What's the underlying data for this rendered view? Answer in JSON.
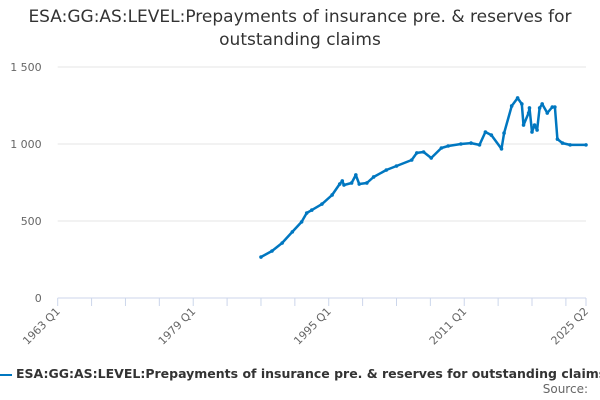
{
  "chart_data": {
    "type": "line",
    "title": "ESA:GG:AS:LEVEL:Prepayments of insurance pre. & reserves for outstanding claims",
    "xlabel": "",
    "ylabel": "",
    "x_tick_labels": [
      "1963 Q1",
      "1979 Q1",
      "1995 Q1",
      "2011 Q1",
      "2025 Q2"
    ],
    "x_tick_values": [
      1963.0,
      1979.0,
      1995.0,
      2011.0,
      2025.375
    ],
    "xlim": [
      1963.0,
      2025.375
    ],
    "y_tick_labels": [
      "0",
      "500",
      "1 000",
      "1 500"
    ],
    "y_tick_values": [
      0,
      500,
      1000,
      1500
    ],
    "ylim": [
      0,
      1500
    ],
    "grid": "horizontal",
    "legend_placement": "bottom",
    "series": [
      {
        "name": "ESA:GG:AS:LEVEL:Prepayments of insurance pre. & reserves for outstanding claims",
        "color": "#0077c0",
        "x": [
          1987.0,
          1988.3,
          1989.5,
          1990.7,
          1991.8,
          1992.4,
          1993.0,
          1994.2,
          1995.4,
          1996.3,
          1996.6,
          1996.8,
          1997.7,
          1998.2,
          1998.6,
          1999.5,
          2000.3,
          2001.8,
          2003.0,
          2004.8,
          2005.4,
          2006.2,
          2007.1,
          2008.3,
          2009.1,
          2010.6,
          2011.8,
          2012.8,
          2013.5,
          2014.2,
          2015.4,
          2015.7,
          2016.6,
          2017.3,
          2017.8,
          2018.0,
          2018.6,
          2018.7,
          2019.0,
          2019.3,
          2019.6,
          2019.9,
          2020.2,
          2020.8,
          2021.4,
          2021.7,
          2022.0,
          2022.6,
          2023.5,
          2025.375
        ],
        "values": [
          266,
          305,
          357,
          429,
          494,
          552,
          571,
          610,
          669,
          740,
          760,
          734,
          747,
          799,
          740,
          747,
          786,
          831,
          857,
          896,
          942,
          948,
          909,
          974,
          987,
          1000,
          1006,
          994,
          1078,
          1058,
          968,
          1071,
          1247,
          1299,
          1260,
          1123,
          1201,
          1234,
          1078,
          1123,
          1091,
          1234,
          1260,
          1201,
          1240,
          1240,
          1032,
          1006,
          994,
          994
        ]
      }
    ]
  },
  "source_label": "Source:"
}
